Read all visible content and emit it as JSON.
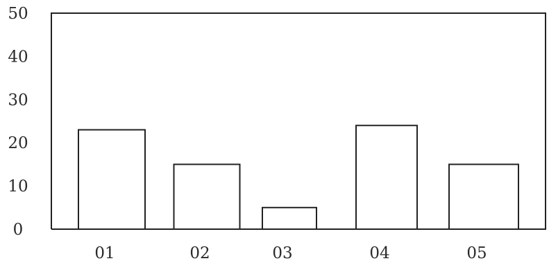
{
  "chart_data": {
    "type": "bar",
    "title": "",
    "xlabel": "",
    "ylabel": "",
    "categories": [
      "01",
      "02",
      "03",
      "04",
      "05"
    ],
    "values": [
      23,
      15,
      5,
      24,
      15
    ],
    "ylim": [
      0,
      50
    ],
    "yticks": [
      "0",
      "10",
      "20",
      "30",
      "40",
      "50"
    ],
    "grid": false,
    "legend": "none",
    "bar_color": "#ffffff",
    "outline_color": "#222222"
  }
}
